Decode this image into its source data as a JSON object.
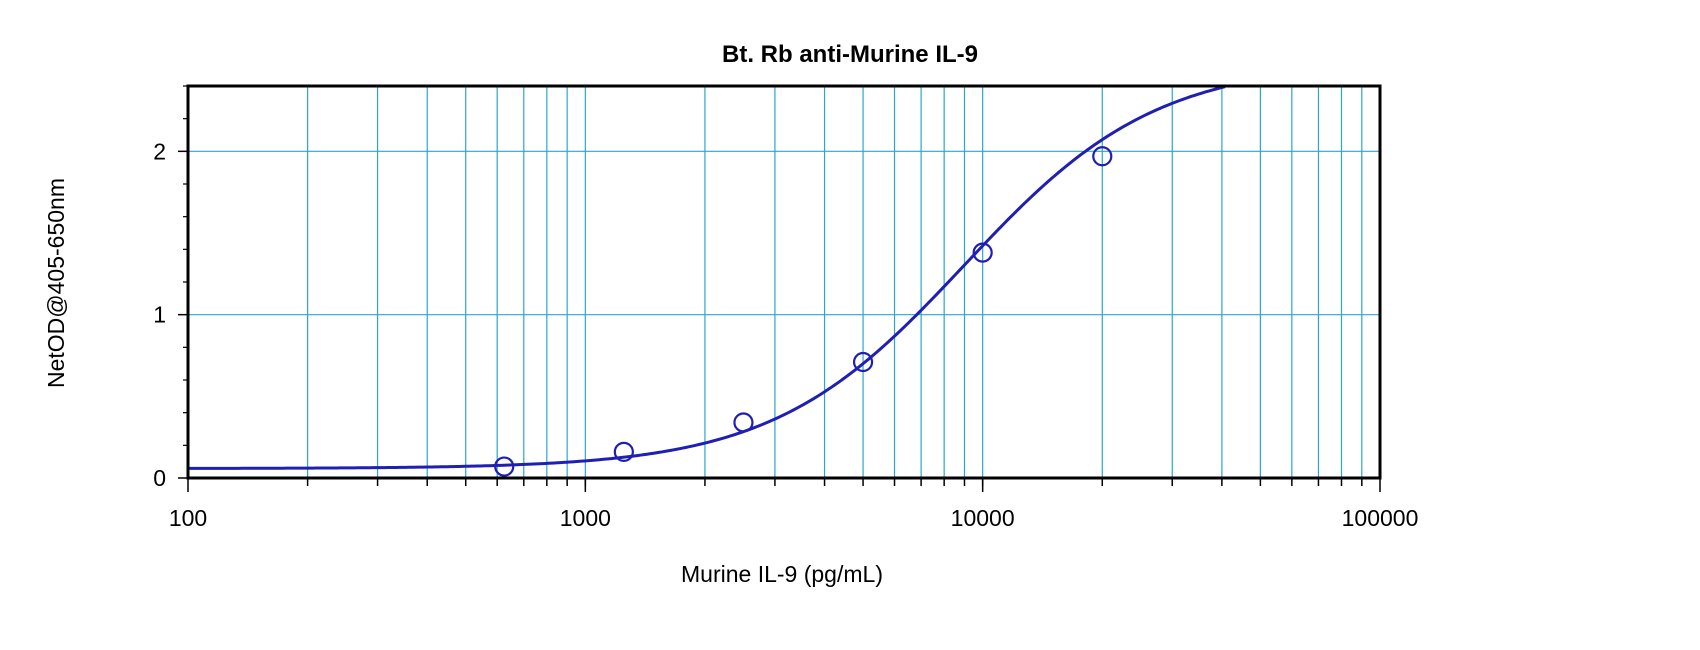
{
  "chart_data": {
    "type": "line",
    "title": "Bt. Rb anti-Murine IL-9",
    "xlabel": "Murine IL-9 (pg/mL)",
    "ylabel": "NetOD@405-650nm",
    "x_scale": "log",
    "xlim": [
      100,
      100000
    ],
    "ylim": [
      0,
      2.4
    ],
    "x_ticks": [
      100,
      1000,
      10000,
      100000
    ],
    "x_tick_labels": [
      "100",
      "1000",
      "10000",
      "100000"
    ],
    "y_ticks": [
      0,
      1,
      2
    ],
    "y_tick_labels": [
      "0",
      "1",
      "2"
    ],
    "grid": true,
    "legend": "none",
    "series": [
      {
        "kind": "points",
        "x": [
          625,
          1250,
          2500,
          5000,
          10000,
          20000
        ],
        "y": [
          0.07,
          0.16,
          0.34,
          0.71,
          1.38,
          1.97
        ]
      },
      {
        "kind": "fitted-curve",
        "model": "4PL",
        "params": {
          "bottom": 0.058,
          "top": 2.55,
          "ec50": 9000,
          "hill": 1.8
        }
      }
    ],
    "colors": {
      "grid": "#2aa7cc",
      "curve": "#1f1fb4",
      "marker": "#1f1fb4",
      "frame": "#000000"
    }
  }
}
